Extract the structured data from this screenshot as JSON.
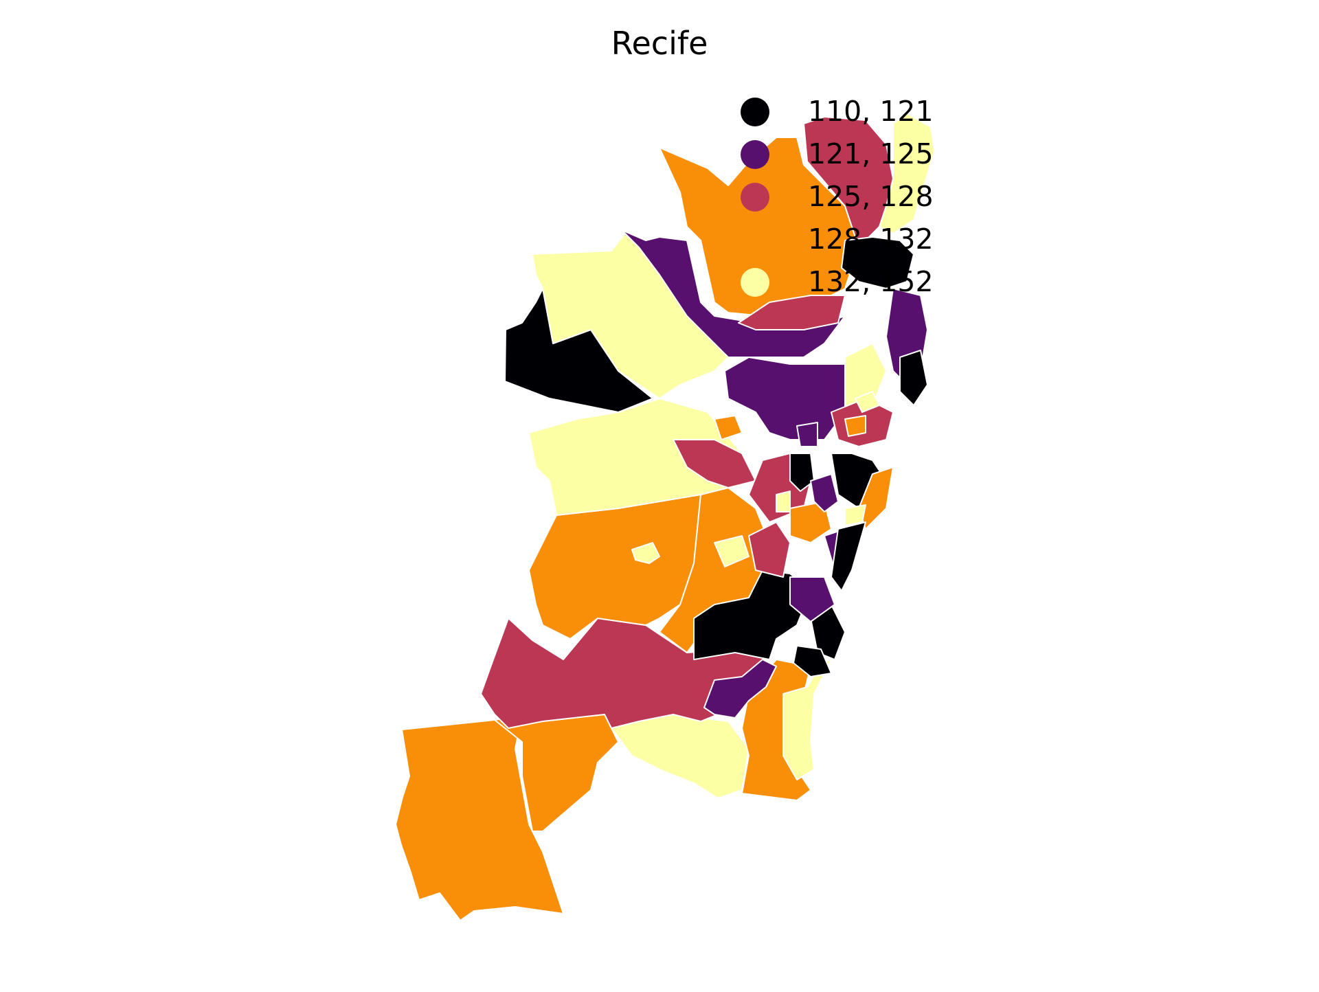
{
  "map": {
    "title": "Recife",
    "colors": {
      "c1": "#000004",
      "c2": "#57106e",
      "c3": "#bc3754",
      "c4": "#f98e09",
      "c5": "#fcffa4"
    },
    "legend": [
      {
        "label": "110, 121",
        "color": "#000004"
      },
      {
        "label": "121, 125",
        "color": "#57106e"
      },
      {
        "label": "125, 128",
        "color": "#bc3754"
      },
      {
        "label": "128, 132",
        "color": "#f98e09"
      },
      {
        "label": "132, 152",
        "color": "#fcffa4"
      }
    ]
  }
}
